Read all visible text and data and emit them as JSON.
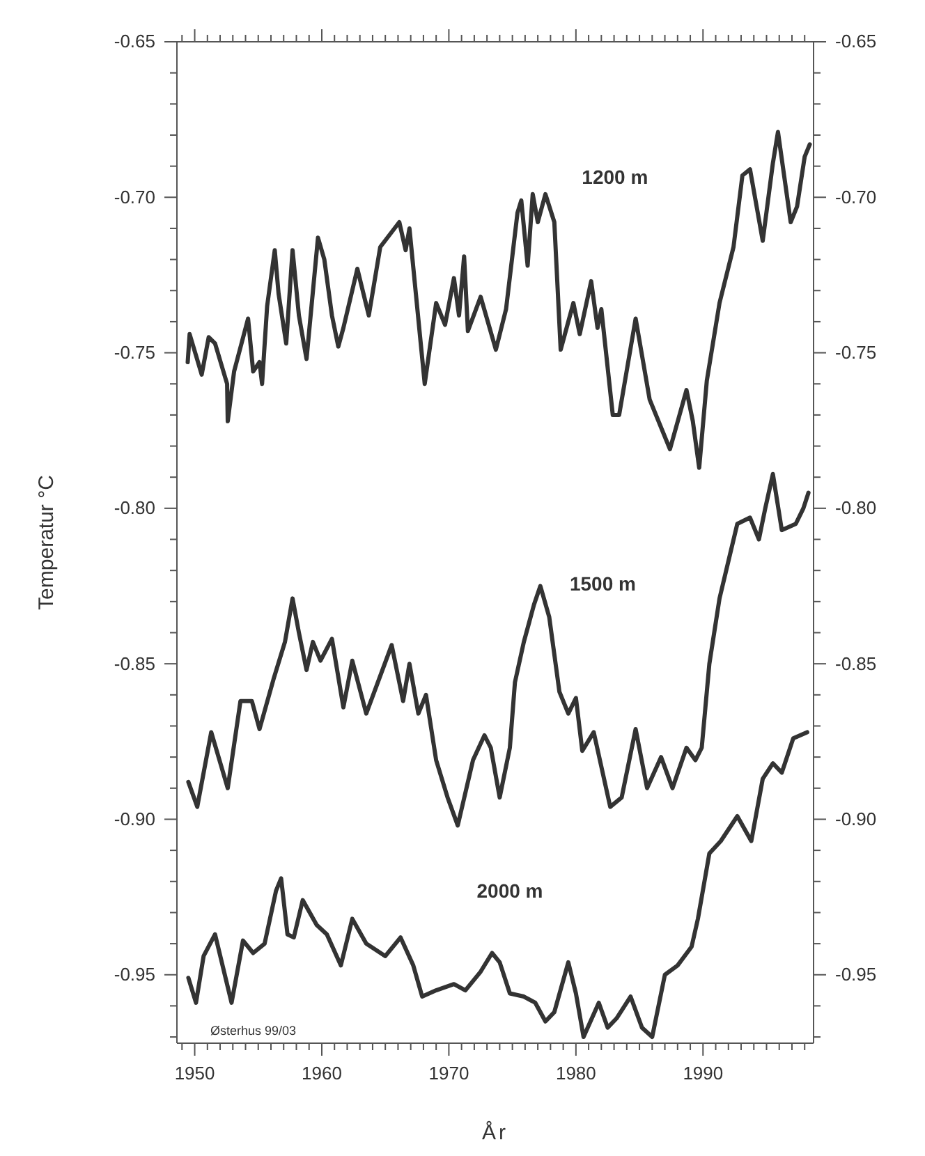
{
  "chart_data": {
    "type": "line",
    "xlabel": "År",
    "ylabel": "Temperatur °C",
    "annotations": [
      "Østerhus 99/03"
    ],
    "xlim": [
      1948.6,
      1998.7
    ],
    "xticks": [
      {
        "value": 1949,
        "label": null
      },
      1950,
      {
        "value": 1951,
        "label": null
      },
      {
        "value": 1952,
        "label": null
      },
      {
        "value": 1953,
        "label": null
      },
      {
        "value": 1954,
        "label": null
      },
      {
        "value": 1955,
        "label": null
      },
      {
        "value": 1956,
        "label": null
      },
      {
        "value": 1957,
        "label": null
      },
      {
        "value": 1958,
        "label": null
      },
      {
        "value": 1959,
        "label": null
      },
      1960,
      {
        "value": 1961,
        "label": null
      },
      {
        "value": 1962,
        "label": null
      },
      {
        "value": 1963,
        "label": null
      },
      {
        "value": 1964,
        "label": null
      },
      {
        "value": 1965,
        "label": null
      },
      {
        "value": 1966,
        "label": null
      },
      {
        "value": 1967,
        "label": null
      },
      {
        "value": 1968,
        "label": null
      },
      {
        "value": 1969,
        "label": null
      },
      1970,
      {
        "value": 1971,
        "label": null
      },
      {
        "value": 1972,
        "label": null
      },
      {
        "value": 1973,
        "label": null
      },
      {
        "value": 1974,
        "label": null
      },
      {
        "value": 1975,
        "label": null
      },
      {
        "value": 1976,
        "label": null
      },
      {
        "value": 1977,
        "label": null
      },
      {
        "value": 1978,
        "label": null
      },
      {
        "value": 1979,
        "label": null
      },
      1980,
      {
        "value": 1981,
        "label": null
      },
      {
        "value": 1982,
        "label": null
      },
      {
        "value": 1983,
        "label": null
      },
      {
        "value": 1984,
        "label": null
      },
      {
        "value": 1985,
        "label": null
      },
      {
        "value": 1986,
        "label": null
      },
      {
        "value": 1987,
        "label": null
      },
      {
        "value": 1988,
        "label": null
      },
      {
        "value": 1989,
        "label": null
      },
      1990,
      {
        "value": 1991,
        "label": null
      },
      {
        "value": 1992,
        "label": null
      },
      {
        "value": 1993,
        "label": null
      },
      {
        "value": 1994,
        "label": null
      },
      {
        "value": 1995,
        "label": null
      },
      {
        "value": 1996,
        "label": null
      },
      {
        "value": 1997,
        "label": null
      },
      {
        "value": 1998,
        "label": null
      }
    ],
    "ylim": [
      -0.972,
      -0.65
    ],
    "yticks": [
      {
        "value": -0.97,
        "label": null
      },
      {
        "value": -0.96,
        "label": null
      },
      {
        "value": -0.95,
        "label": "-0.95"
      },
      {
        "value": -0.94,
        "label": null
      },
      {
        "value": -0.93,
        "label": null
      },
      {
        "value": -0.92,
        "label": null
      },
      {
        "value": -0.91,
        "label": null
      },
      {
        "value": -0.9,
        "label": "-0.90"
      },
      {
        "value": -0.89,
        "label": null
      },
      {
        "value": -0.88,
        "label": null
      },
      {
        "value": -0.87,
        "label": null
      },
      {
        "value": -0.86,
        "label": null
      },
      {
        "value": -0.85,
        "label": "-0.85"
      },
      {
        "value": -0.84,
        "label": null
      },
      {
        "value": -0.83,
        "label": null
      },
      {
        "value": -0.82,
        "label": null
      },
      {
        "value": -0.81,
        "label": null
      },
      {
        "value": -0.8,
        "label": "-0.80"
      },
      {
        "value": -0.79,
        "label": null
      },
      {
        "value": -0.78,
        "label": null
      },
      {
        "value": -0.77,
        "label": null
      },
      {
        "value": -0.76,
        "label": null
      },
      {
        "value": -0.75,
        "label": "-0.75"
      },
      {
        "value": -0.74,
        "label": null
      },
      {
        "value": -0.73,
        "label": null
      },
      {
        "value": -0.72,
        "label": null
      },
      {
        "value": -0.71,
        "label": null
      },
      {
        "value": -0.7,
        "label": "-0.70"
      },
      {
        "value": -0.69,
        "label": null
      },
      {
        "value": -0.68,
        "label": null
      },
      {
        "value": -0.67,
        "label": null
      },
      {
        "value": -0.66,
        "label": null
      },
      {
        "value": -0.65,
        "label": "-0.65"
      }
    ],
    "y2lim": [
      -0.972,
      -0.65
    ],
    "y2ticks": [
      {
        "value": -0.97,
        "label": null
      },
      {
        "value": -0.96,
        "label": null
      },
      {
        "value": -0.95,
        "label": "-0.95"
      },
      {
        "value": -0.94,
        "label": null
      },
      {
        "value": -0.93,
        "label": null
      },
      {
        "value": -0.92,
        "label": null
      },
      {
        "value": -0.91,
        "label": null
      },
      {
        "value": -0.9,
        "label": "-0.90"
      },
      {
        "value": -0.89,
        "label": null
      },
      {
        "value": -0.88,
        "label": null
      },
      {
        "value": -0.87,
        "label": null
      },
      {
        "value": -0.86,
        "label": null
      },
      {
        "value": -0.85,
        "label": "-0.85"
      },
      {
        "value": -0.84,
        "label": null
      },
      {
        "value": -0.83,
        "label": null
      },
      {
        "value": -0.82,
        "label": null
      },
      {
        "value": -0.81,
        "label": null
      },
      {
        "value": -0.8,
        "label": "-0.80"
      },
      {
        "value": -0.79,
        "label": null
      },
      {
        "value": -0.78,
        "label": null
      },
      {
        "value": -0.77,
        "label": null
      },
      {
        "value": -0.76,
        "label": null
      },
      {
        "value": -0.75,
        "label": "-0.75"
      },
      {
        "value": -0.74,
        "label": null
      },
      {
        "value": -0.73,
        "label": null
      },
      {
        "value": -0.72,
        "label": null
      },
      {
        "value": -0.71,
        "label": null
      },
      {
        "value": -0.7,
        "label": "-0.70"
      },
      {
        "value": -0.69,
        "label": null
      },
      {
        "value": -0.68,
        "label": null
      },
      {
        "value": -0.67,
        "label": null
      },
      {
        "value": -0.66,
        "label": null
      },
      {
        "value": -0.65,
        "label": "-0.65"
      }
    ],
    "grid": false,
    "legend": false,
    "marker": "none",
    "line_style": "solid",
    "series": [
      {
        "name": "1200 m",
        "color": "#333333",
        "x": [
          1949.45,
          1949.6,
          1950.55,
          1951.1,
          1951.6,
          1952.55,
          1952.6,
          1953.1,
          1954.2,
          1954.6,
          1955.1,
          1955.3,
          1955.7,
          1956.3,
          1956.6,
          1957.2,
          1957.7,
          1958.2,
          1958.8,
          1959.7,
          1960.2,
          1960.8,
          1961.3,
          1961.7,
          1962.8,
          1963.7,
          1964.6,
          1966.1,
          1966.6,
          1966.9,
          1968.1,
          1969.0,
          1969.7,
          1970.4,
          1970.8,
          1971.2,
          1971.5,
          1972.5,
          1973.7,
          1974.5,
          1975.4,
          1975.7,
          1976.2,
          1976.6,
          1977.0,
          1977.6,
          1978.3,
          1978.8,
          1979.8,
          1980.3,
          1981.2,
          1981.7,
          1982.0,
          1982.9,
          1983.4,
          1984.7,
          1985.8,
          1987.4,
          1988.7,
          1989.2,
          1989.7,
          1990.3,
          1991.3,
          1992.4,
          1993.1,
          1993.7,
          1994.7,
          1995.5,
          1995.9,
          1996.9,
          1997.4,
          1998.0,
          1998.4
        ],
        "values": [
          -0.753,
          -0.744,
          -0.757,
          -0.745,
          -0.747,
          -0.76,
          -0.772,
          -0.756,
          -0.739,
          -0.756,
          -0.753,
          -0.76,
          -0.735,
          -0.717,
          -0.731,
          -0.747,
          -0.717,
          -0.738,
          -0.752,
          -0.713,
          -0.72,
          -0.738,
          -0.748,
          -0.742,
          -0.723,
          -0.738,
          -0.716,
          -0.708,
          -0.717,
          -0.71,
          -0.76,
          -0.734,
          -0.741,
          -0.726,
          -0.738,
          -0.719,
          -0.743,
          -0.732,
          -0.749,
          -0.736,
          -0.705,
          -0.701,
          -0.722,
          -0.699,
          -0.708,
          -0.699,
          -0.708,
          -0.749,
          -0.734,
          -0.744,
          -0.727,
          -0.742,
          -0.736,
          -0.77,
          -0.77,
          -0.739,
          -0.765,
          -0.781,
          -0.762,
          -0.772,
          -0.787,
          -0.759,
          -0.734,
          -0.716,
          -0.693,
          -0.691,
          -0.714,
          -0.689,
          -0.679,
          -0.708,
          -0.703,
          -0.687,
          -0.683
        ]
      },
      {
        "name": "1500 m",
        "color": "#333333",
        "x": [
          1949.5,
          1950.2,
          1951.3,
          1952.6,
          1953.6,
          1954.5,
          1955.1,
          1956.2,
          1957.1,
          1957.7,
          1958.2,
          1958.8,
          1959.3,
          1959.9,
          1960.8,
          1961.7,
          1962.4,
          1963.5,
          1965.5,
          1966.4,
          1966.9,
          1967.6,
          1968.2,
          1969.0,
          1969.9,
          1970.7,
          1971.9,
          1972.8,
          1973.3,
          1974.0,
          1974.8,
          1975.2,
          1975.9,
          1976.7,
          1977.2,
          1977.9,
          1978.7,
          1979.4,
          1980.0,
          1980.5,
          1981.4,
          1982.7,
          1983.6,
          1984.7,
          1985.6,
          1986.7,
          1987.6,
          1988.7,
          1989.4,
          1989.9,
          1990.5,
          1991.3,
          1992.0,
          1992.7,
          1993.7,
          1994.4,
          1994.9,
          1995.5,
          1996.2,
          1997.3,
          1997.9,
          1998.3
        ],
        "values": [
          -0.888,
          -0.896,
          -0.872,
          -0.89,
          -0.862,
          -0.862,
          -0.871,
          -0.855,
          -0.843,
          -0.829,
          -0.84,
          -0.852,
          -0.843,
          -0.849,
          -0.842,
          -0.864,
          -0.849,
          -0.866,
          -0.844,
          -0.862,
          -0.85,
          -0.866,
          -0.86,
          -0.881,
          -0.893,
          -0.902,
          -0.881,
          -0.873,
          -0.877,
          -0.893,
          -0.877,
          -0.856,
          -0.843,
          -0.831,
          -0.825,
          -0.835,
          -0.859,
          -0.866,
          -0.861,
          -0.878,
          -0.872,
          -0.896,
          -0.893,
          -0.871,
          -0.89,
          -0.88,
          -0.89,
          -0.877,
          -0.881,
          -0.877,
          -0.85,
          -0.829,
          -0.817,
          -0.805,
          -0.803,
          -0.81,
          -0.8,
          -0.789,
          -0.807,
          -0.805,
          -0.8,
          -0.795
        ]
      },
      {
        "name": "2000 m",
        "color": "#333333",
        "x": [
          1949.5,
          1950.1,
          1950.7,
          1951.6,
          1952.9,
          1953.8,
          1954.6,
          1955.5,
          1956.4,
          1956.8,
          1957.3,
          1957.8,
          1958.5,
          1959.6,
          1960.4,
          1961.5,
          1962.4,
          1963.5,
          1965.0,
          1966.2,
          1967.2,
          1967.9,
          1969.0,
          1970.4,
          1971.3,
          1972.5,
          1973.4,
          1974.0,
          1974.8,
          1975.9,
          1976.8,
          1977.6,
          1978.3,
          1979.4,
          1980.0,
          1980.6,
          1981.8,
          1982.5,
          1983.2,
          1984.3,
          1985.2,
          1986.0,
          1987.0,
          1988.0,
          1989.1,
          1989.6,
          1990.5,
          1991.4,
          1992.7,
          1993.8,
          1994.7,
          1995.5,
          1996.2,
          1997.1,
          1998.2
        ],
        "values": [
          -0.951,
          -0.959,
          -0.944,
          -0.937,
          -0.959,
          -0.939,
          -0.943,
          -0.94,
          -0.923,
          -0.919,
          -0.937,
          -0.938,
          -0.926,
          -0.934,
          -0.937,
          -0.947,
          -0.932,
          -0.94,
          -0.944,
          -0.938,
          -0.947,
          -0.957,
          -0.955,
          -0.953,
          -0.955,
          -0.949,
          -0.943,
          -0.946,
          -0.956,
          -0.957,
          -0.959,
          -0.965,
          -0.962,
          -0.946,
          -0.956,
          -0.97,
          -0.959,
          -0.967,
          -0.964,
          -0.957,
          -0.967,
          -0.97,
          -0.95,
          -0.947,
          -0.941,
          -0.932,
          -0.911,
          -0.907,
          -0.899,
          -0.907,
          -0.887,
          -0.882,
          -0.885,
          -0.874,
          -0.872
        ]
      }
    ]
  }
}
